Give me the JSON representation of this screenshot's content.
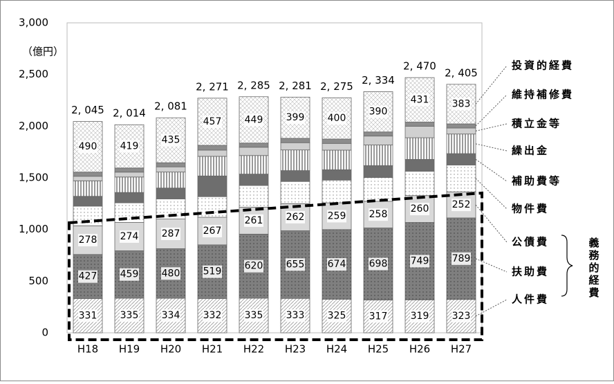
{
  "chart_data": {
    "type": "stacked-bar",
    "unit_label": "（億円）",
    "group_label": "義務的経費",
    "categories": [
      "H18",
      "H19",
      "H20",
      "H21",
      "H22",
      "H23",
      "H24",
      "H25",
      "H26",
      "H27"
    ],
    "ylim": [
      0,
      3000
    ],
    "yticks": [
      0,
      500,
      {
        "value": 1000,
        "label": "1,000"
      },
      {
        "value": 1500,
        "label": "1,500"
      },
      {
        "value": 2000,
        "label": "2,000"
      },
      {
        "value": 2500,
        "label": "2,500"
      },
      {
        "value": 3000,
        "label": "3,000"
      }
    ],
    "grid": false,
    "series": [
      {
        "name": "人件費",
        "color": "#ffffff",
        "pattern": "diagonal",
        "labels": true,
        "values": [
          331,
          335,
          334,
          332,
          335,
          333,
          325,
          317,
          319,
          323
        ]
      },
      {
        "name": "扶助費",
        "color": "#7f7f7f",
        "pattern": "dots-dark",
        "labels": true,
        "values": [
          427,
          459,
          480,
          519,
          620,
          655,
          674,
          698,
          749,
          789
        ]
      },
      {
        "name": "公債費",
        "color": "#d9d9d9",
        "pattern": "none",
        "labels": true,
        "values": [
          278,
          274,
          287,
          267,
          261,
          262,
          259,
          258,
          260,
          252
        ]
      },
      {
        "name": "物件費",
        "color": "#ffffff",
        "pattern": "dots",
        "labels": false,
        "values": [
          190,
          190,
          195,
          200,
          210,
          215,
          220,
          230,
          235,
          260
        ]
      },
      {
        "name": "補助費等",
        "color": "#6e6e6e",
        "pattern": "none",
        "labels": false,
        "values": [
          95,
          100,
          105,
          200,
          110,
          105,
          100,
          115,
          115,
          110
        ]
      },
      {
        "name": "繰出金",
        "color": "#ffffff",
        "pattern": "vertical",
        "labels": false,
        "values": [
          150,
          150,
          155,
          190,
          180,
          200,
          190,
          200,
          210,
          190
        ]
      },
      {
        "name": "積立金等",
        "color": "#d0d0d0",
        "pattern": "none",
        "labels": false,
        "values": [
          44,
          47,
          50,
          60,
          80,
          70,
          65,
          86,
          111,
          58
        ]
      },
      {
        "name": "維持補修費",
        "color": "#8c8c8c",
        "pattern": "none",
        "labels": false,
        "values": [
          40,
          40,
          40,
          46,
          40,
          42,
          42,
          40,
          40,
          40
        ]
      },
      {
        "name": "投資的経費",
        "color": "#ffffff",
        "pattern": "crosshatch",
        "labels": true,
        "values": [
          490,
          419,
          435,
          457,
          449,
          399,
          400,
          390,
          431,
          383
        ]
      }
    ],
    "totals": {
      "values": [
        2045,
        2014,
        2081,
        2271,
        2285,
        2281,
        2275,
        2334,
        2470,
        2405
      ],
      "value_labels": [
        "2, 045",
        "2, 014",
        "2, 081",
        "2, 271",
        "2, 285",
        "2, 281",
        "2, 275",
        "2, 334",
        "2, 470",
        "2, 405"
      ]
    }
  }
}
